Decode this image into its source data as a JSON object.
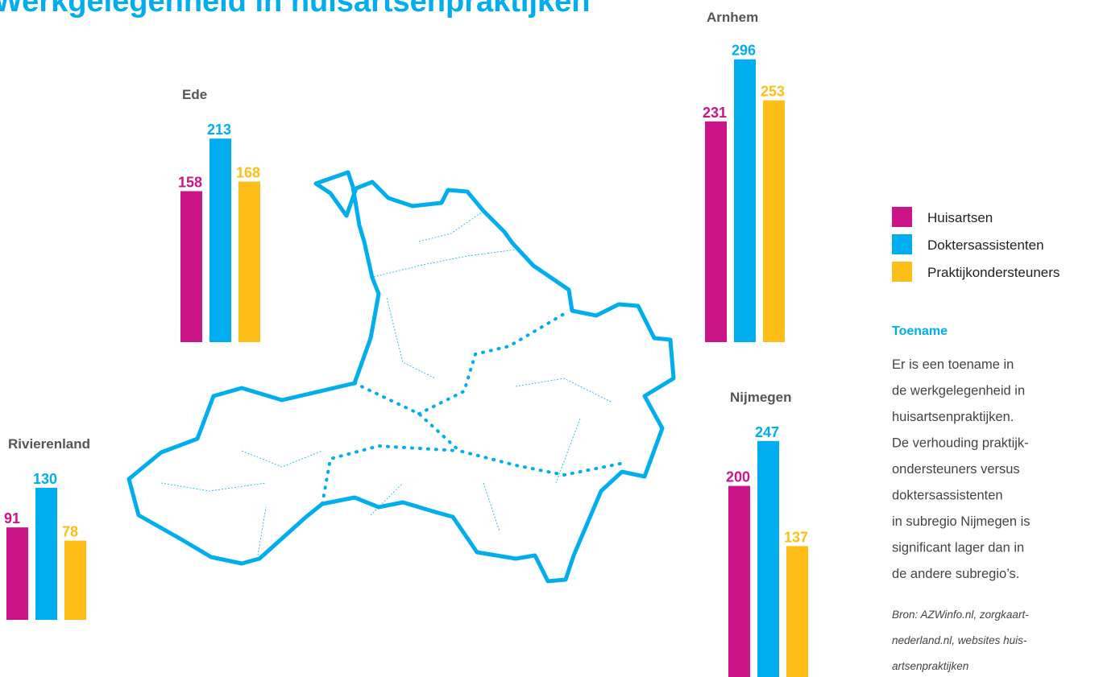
{
  "title": "Werkgelegenheid in huisartsenpraktijken",
  "legend": [
    {
      "name": "Huisartsen",
      "color": "#cc1489"
    },
    {
      "name": "Doktersassistenten",
      "color": "#00aeef"
    },
    {
      "name": "Praktijkondersteuners",
      "color": "#fdbf17"
    }
  ],
  "chart_data": [
    {
      "type": "bar",
      "title": "Ede",
      "values": [
        158,
        213,
        168
      ]
    },
    {
      "type": "bar",
      "title": "Arnhem",
      "values": [
        231,
        296,
        253
      ]
    },
    {
      "type": "bar",
      "title": "Rivierenland",
      "values": [
        91,
        130,
        78
      ]
    },
    {
      "type": "bar",
      "title": "Nijmegen",
      "values": [
        200,
        247,
        137
      ]
    }
  ],
  "note": {
    "heading": "Toename",
    "lines": [
      "Er is een toename in",
      "de werkgelegenheid in",
      "huisartsenpraktijken.",
      "De verhouding praktijk-",
      "ondersteuners versus",
      "doktersassistenten",
      "in subregio Nijmegen is",
      "significant lager dan in",
      "de andere subregio’s."
    ],
    "source": [
      "Bron: AZWinfo.nl, zorgkaart-",
      "nederland.nl, websites huis-",
      "artsenpraktijken"
    ]
  }
}
